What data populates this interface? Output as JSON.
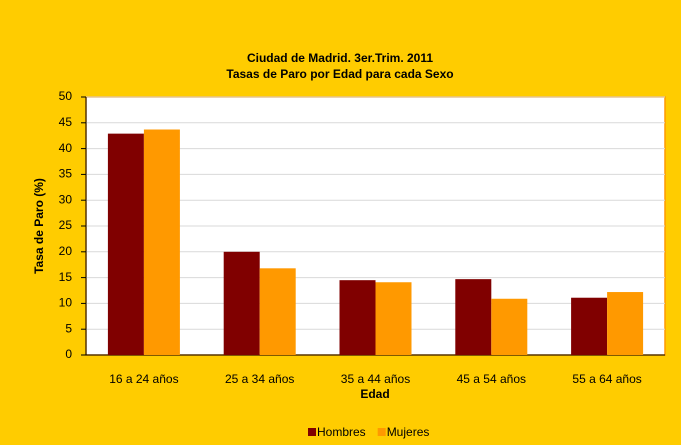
{
  "chart_data": {
    "type": "bar",
    "title": "Ciudad de Madrid. 3er.Trim. 2011",
    "subtitle": "Tasas de Paro por Edad para cada Sexo",
    "x_label": "Edad",
    "y_label": "Tasa de Paro (%)",
    "categories": [
      "16 a 24 años",
      "25 a 34 años",
      "35 a 44 años",
      "45 a 54 años",
      "55 a 64 años"
    ],
    "series": [
      {
        "name": "Hombres",
        "color": "#800000",
        "values": [
          42.9,
          20.0,
          14.5,
          14.7,
          11.1
        ]
      },
      {
        "name": "Mujeres",
        "color": "#FF9900",
        "values": [
          43.7,
          16.8,
          14.1,
          10.9,
          12.2
        ]
      }
    ],
    "ylim": [
      0,
      50
    ],
    "yticks": [
      0,
      5,
      10,
      15,
      20,
      25,
      30,
      35,
      40,
      45,
      50
    ],
    "grid": true,
    "legend": "bottom"
  }
}
